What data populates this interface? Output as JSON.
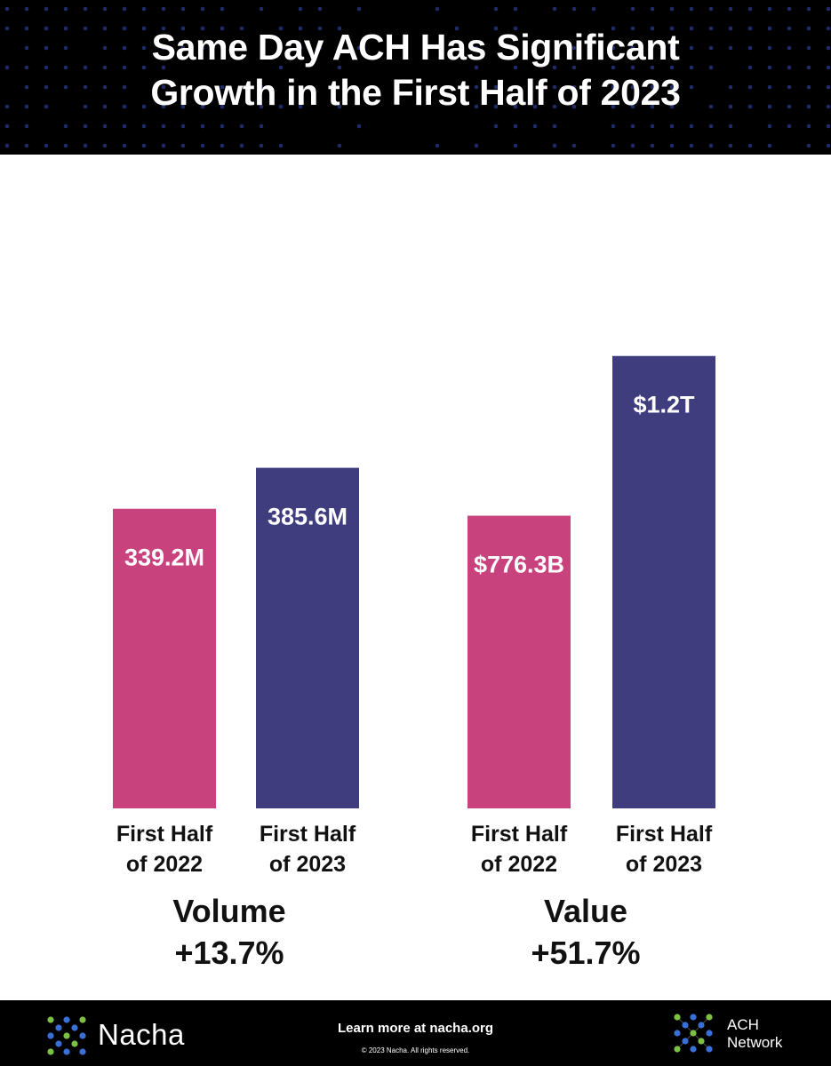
{
  "header": {
    "title_line1": "Same Day ACH Has Significant",
    "title_line2": "Growth in the First Half of 2023"
  },
  "chart_data": [
    {
      "type": "bar",
      "group_label": "Volume",
      "change": "+13.7%",
      "unit": "millions of transactions",
      "categories": [
        {
          "line1": "First Half",
          "line2": "of 2022"
        },
        {
          "line1": "First Half",
          "line2": "of 2023"
        }
      ],
      "values": [
        339.2,
        385.6
      ],
      "value_labels": [
        "339.2M",
        "385.6M"
      ],
      "colors": [
        "#c8437e",
        "#3f3d7e"
      ],
      "ylim": [
        0,
        700
      ]
    },
    {
      "type": "bar",
      "group_label": "Value",
      "change": "+51.7%",
      "unit": "billions of dollars",
      "categories": [
        {
          "line1": "First Half",
          "line2": "of 2022"
        },
        {
          "line1": "First Half",
          "line2": "of 2023"
        }
      ],
      "values": [
        776.3,
        1200
      ],
      "value_labels": [
        "$776.3B",
        "$1.2T"
      ],
      "colors": [
        "#c8437e",
        "#3f3d7e"
      ],
      "ylim": [
        0,
        1640
      ]
    }
  ],
  "footer": {
    "brand": "Nacha",
    "learn_more": "Learn more at nacha.org",
    "copyright": "© 2023 Nacha. All rights reserved.",
    "network_line1": "ACH",
    "network_line2": "Network"
  },
  "colors": {
    "background": "#ffffff",
    "header_bg": "#000000",
    "pink": "#c8437e",
    "purple": "#3f3d7e",
    "dot_blue": "#2a3a8c",
    "logo_green": "#7cc143",
    "logo_blue": "#3b6fd8"
  },
  "icons": {
    "header_pattern": "dot-grid-pattern",
    "nacha_logo": "nacha-dots-logo-icon",
    "ach_logo": "ach-network-dots-logo-icon"
  }
}
